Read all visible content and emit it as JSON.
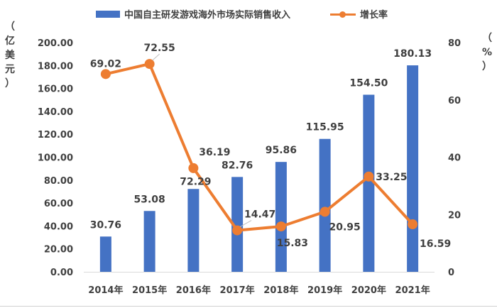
{
  "legend": {
    "bar_label": "中国自主研发游戏海外市场实际销售收入",
    "line_label": "增长率"
  },
  "axis_units": {
    "left": [
      "（",
      "亿",
      "美",
      "元",
      "）"
    ],
    "right": [
      "（",
      "%",
      "）"
    ]
  },
  "colors": {
    "bar": "#4472C4",
    "line": "#ED7D31",
    "text": "#404040"
  },
  "chart_data": {
    "type": "bar",
    "categories": [
      "2014年",
      "2015年",
      "2016年",
      "2017年",
      "2018年",
      "2019年",
      "2020年",
      "2021年"
    ],
    "series": [
      {
        "name": "中国自主研发游戏海外市场实际销售收入",
        "type": "bar",
        "axis": "left",
        "values": [
          30.76,
          53.08,
          72.29,
          82.76,
          95.86,
          115.95,
          154.5,
          180.13
        ]
      },
      {
        "name": "增长率",
        "type": "line",
        "axis": "right",
        "values": [
          69.02,
          72.55,
          36.19,
          14.47,
          15.83,
          20.95,
          33.25,
          16.59
        ]
      }
    ],
    "bar_labels": [
      "30.76",
      "53.08",
      "72.29",
      "82.76",
      "95.86",
      "115.95",
      "154.50",
      "180.13"
    ],
    "line_labels": [
      "69.02",
      "72.55",
      "36.19",
      "14.47",
      "15.83",
      "20.95",
      "33.25",
      "16.59"
    ],
    "y_left": {
      "range": [
        0,
        200
      ],
      "ticks": [
        "0.00",
        "20.00",
        "40.00",
        "60.00",
        "80.00",
        "100.00",
        "120.00",
        "140.00",
        "160.00",
        "180.00",
        "200.00"
      ]
    },
    "y_right": {
      "range": [
        0,
        80
      ],
      "ticks": [
        "0",
        "20",
        "40",
        "60",
        "80"
      ]
    },
    "grid": false,
    "legend_position": "top"
  }
}
